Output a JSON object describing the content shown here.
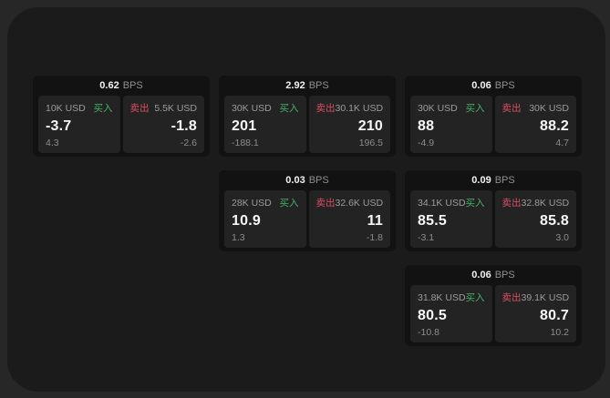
{
  "labels": {
    "buy": "买入",
    "sell": "卖出",
    "bps_unit": "BPS"
  },
  "colors": {
    "page_bg": "#272727",
    "panel_bg": "#1b1b1b",
    "card_bg": "#121212",
    "subcard_bg": "#232323",
    "buy": "#45b168",
    "sell": "#d84f63"
  },
  "cards": [
    {
      "bps": "0.62",
      "buy": {
        "amount": "10K USD",
        "value": "-3.7",
        "delta": "4.3"
      },
      "sell": {
        "amount": "5.5K USD",
        "value": "-1.8",
        "delta": "-2.6"
      }
    },
    {
      "bps": "2.92",
      "buy": {
        "amount": "30K USD",
        "value": "201",
        "delta": "-188.1"
      },
      "sell": {
        "amount": "30.1K USD",
        "value": "210",
        "delta": "196.5"
      }
    },
    {
      "bps": "0.06",
      "buy": {
        "amount": "30K USD",
        "value": "88",
        "delta": "-4.9"
      },
      "sell": {
        "amount": "30K USD",
        "value": "88.2",
        "delta": "4.7"
      }
    },
    {
      "bps": "0.03",
      "buy": {
        "amount": "28K USD",
        "value": "10.9",
        "delta": "1.3"
      },
      "sell": {
        "amount": "32.6K USD",
        "value": "11",
        "delta": "-1.8"
      }
    },
    {
      "bps": "0.09",
      "buy": {
        "amount": "34.1K USD",
        "value": "85.5",
        "delta": "-3.1"
      },
      "sell": {
        "amount": "32.8K USD",
        "value": "85.8",
        "delta": "3.0"
      }
    },
    {
      "bps": "0.06",
      "buy": {
        "amount": "31.8K USD",
        "value": "80.5",
        "delta": "-10.8"
      },
      "sell": {
        "amount": "39.1K USD",
        "value": "80.7",
        "delta": "10.2"
      }
    }
  ]
}
